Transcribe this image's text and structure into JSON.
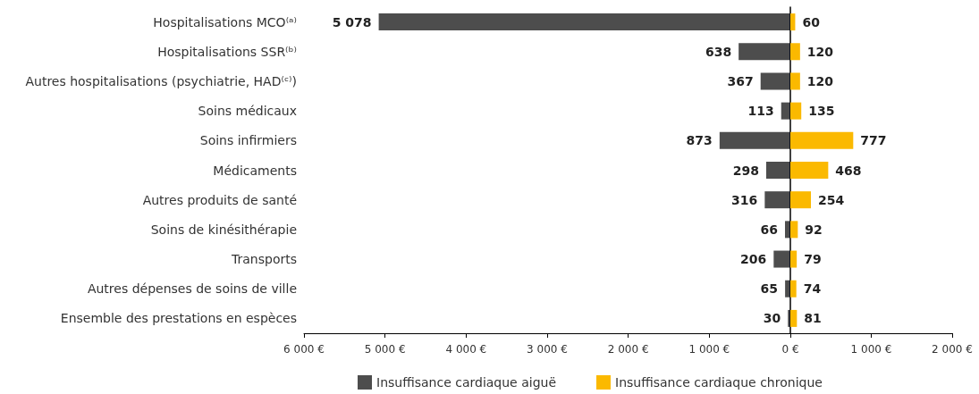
{
  "chart_data": [
    {
      "type": "bar",
      "orientation": "horizontal",
      "categories": [
        "Hospitalisations MCO⁽ᵃ⁾",
        "Hospitalisations SSR⁽ᵇ⁾",
        "Autres hospitalisations (psychiatrie, HAD⁽ᶜ⁾)",
        "Soins médicaux",
        "Soins infirmiers",
        "Médicaments",
        "Autres produits de santé",
        "Soins de kinésithérapie",
        "Transports",
        "Autres dépenses de soins de ville",
        "Ensemble des prestations en espèces"
      ],
      "series": [
        {
          "name": "Insuffisance cardiaque aiguë",
          "color": "#4d4d4d",
          "values": [
            5078,
            638,
            367,
            113,
            873,
            298,
            316,
            66,
            206,
            65,
            30
          ],
          "value_labels": [
            "5 078",
            "638",
            "367",
            "113",
            "873",
            "298",
            "316",
            "66",
            "206",
            "65",
            "30"
          ]
        }
      ],
      "xlim": [
        6000,
        0
      ],
      "xticks": [
        {
          "value": 6000,
          "label": "6 000 €"
        },
        {
          "value": 5000,
          "label": "5 000 €"
        },
        {
          "value": 4000,
          "label": "4 000 €"
        },
        {
          "value": 3000,
          "label": "3 000 €"
        },
        {
          "value": 2000,
          "label": "2 000 €"
        },
        {
          "value": 1000,
          "label": "1 000 €"
        },
        {
          "value": 0,
          "label": "0 €"
        }
      ],
      "grid": false,
      "legend": "bottom"
    },
    {
      "type": "bar",
      "orientation": "horizontal",
      "tick_labels": "x",
      "categories": [
        null,
        null,
        null,
        null,
        null,
        null,
        null,
        null,
        null,
        null,
        null
      ],
      "series": [
        {
          "name": "Insuffisance cardiaque chronique",
          "color": "#fbb900",
          "values": [
            60,
            120,
            120,
            135,
            777,
            468,
            254,
            92,
            79,
            74,
            81
          ],
          "value_labels": [
            "60",
            "120",
            "120",
            "135",
            "777",
            "468",
            "254",
            "92",
            "79",
            "74",
            "81"
          ]
        }
      ],
      "xlim": [
        0,
        2000
      ],
      "xticks": [
        {
          "value": 0,
          "label": null
        },
        {
          "value": 1000,
          "label": "1 000 €"
        },
        {
          "value": 2000,
          "label": "2 000 €"
        }
      ],
      "grid": false,
      "legend": "bottom"
    }
  ]
}
